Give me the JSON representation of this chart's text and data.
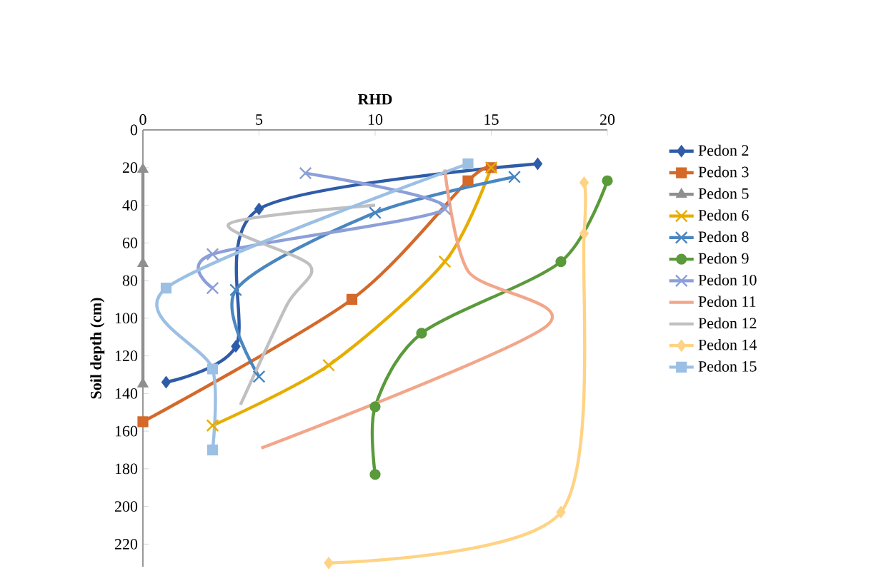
{
  "chart_data": {
    "type": "line",
    "xlabel": "RHD",
    "ylabel": "Soil depth (cm)",
    "xlim": [
      0,
      20
    ],
    "xticks": [
      0,
      5,
      10,
      15,
      20
    ],
    "ylim": [
      232,
      0
    ],
    "yticks": [
      0,
      20,
      40,
      60,
      80,
      100,
      120,
      140,
      160,
      180,
      200,
      220
    ],
    "legend": "right",
    "series": [
      {
        "name": "Pedon 2",
        "color": "#2f5ca8",
        "marker": "diamond",
        "x": [
          17,
          5,
          4,
          1
        ],
        "values": [
          18,
          42,
          115,
          134
        ]
      },
      {
        "name": "Pedon 3",
        "color": "#d4692a",
        "marker": "square",
        "x": [
          15,
          14,
          9,
          0
        ],
        "values": [
          20,
          27,
          90,
          155
        ]
      },
      {
        "name": "Pedon 5",
        "color": "#8f8f8f",
        "marker": "triangle",
        "x": [
          0,
          0,
          0
        ],
        "values": [
          21,
          71,
          135
        ]
      },
      {
        "name": "Pedon 6",
        "color": "#e6ad00",
        "marker": "cross",
        "x": [
          15,
          13,
          8,
          3
        ],
        "values": [
          20,
          70,
          125,
          157
        ]
      },
      {
        "name": "Pedon 8",
        "color": "#4a86c0",
        "marker": "cross",
        "x": [
          16,
          10,
          4,
          5
        ],
        "values": [
          25,
          44,
          85,
          131
        ]
      },
      {
        "name": "Pedon 9",
        "color": "#5a9a3a",
        "marker": "circle",
        "x": [
          20,
          18,
          12,
          10,
          10
        ],
        "values": [
          27,
          70,
          108,
          147,
          183
        ]
      },
      {
        "name": "Pedon 10",
        "color": "#8c9fd8",
        "marker": "cross",
        "x": [
          7,
          13,
          3,
          3
        ],
        "values": [
          23,
          42,
          66,
          84
        ]
      },
      {
        "name": "Pedon 11",
        "color": "#f2a68a",
        "marker": "none",
        "x": [
          13,
          14,
          17.4,
          5.1
        ],
        "values": [
          21,
          75,
          104,
          169
        ]
      },
      {
        "name": "Pedon 12",
        "color": "#c0c0c0",
        "marker": "none",
        "x": [
          10,
          3.7,
          7.2,
          6.2,
          4.2
        ],
        "values": [
          40,
          50,
          72,
          93,
          146
        ]
      },
      {
        "name": "Pedon 14",
        "color": "#ffd384",
        "marker": "diamond",
        "x": [
          19,
          19,
          18,
          8
        ],
        "values": [
          28,
          55,
          203,
          230
        ]
      },
      {
        "name": "Pedon 15",
        "color": "#9cbfe4",
        "marker": "square",
        "x": [
          14,
          1,
          3,
          3
        ],
        "values": [
          18,
          84,
          127,
          170
        ]
      }
    ]
  }
}
